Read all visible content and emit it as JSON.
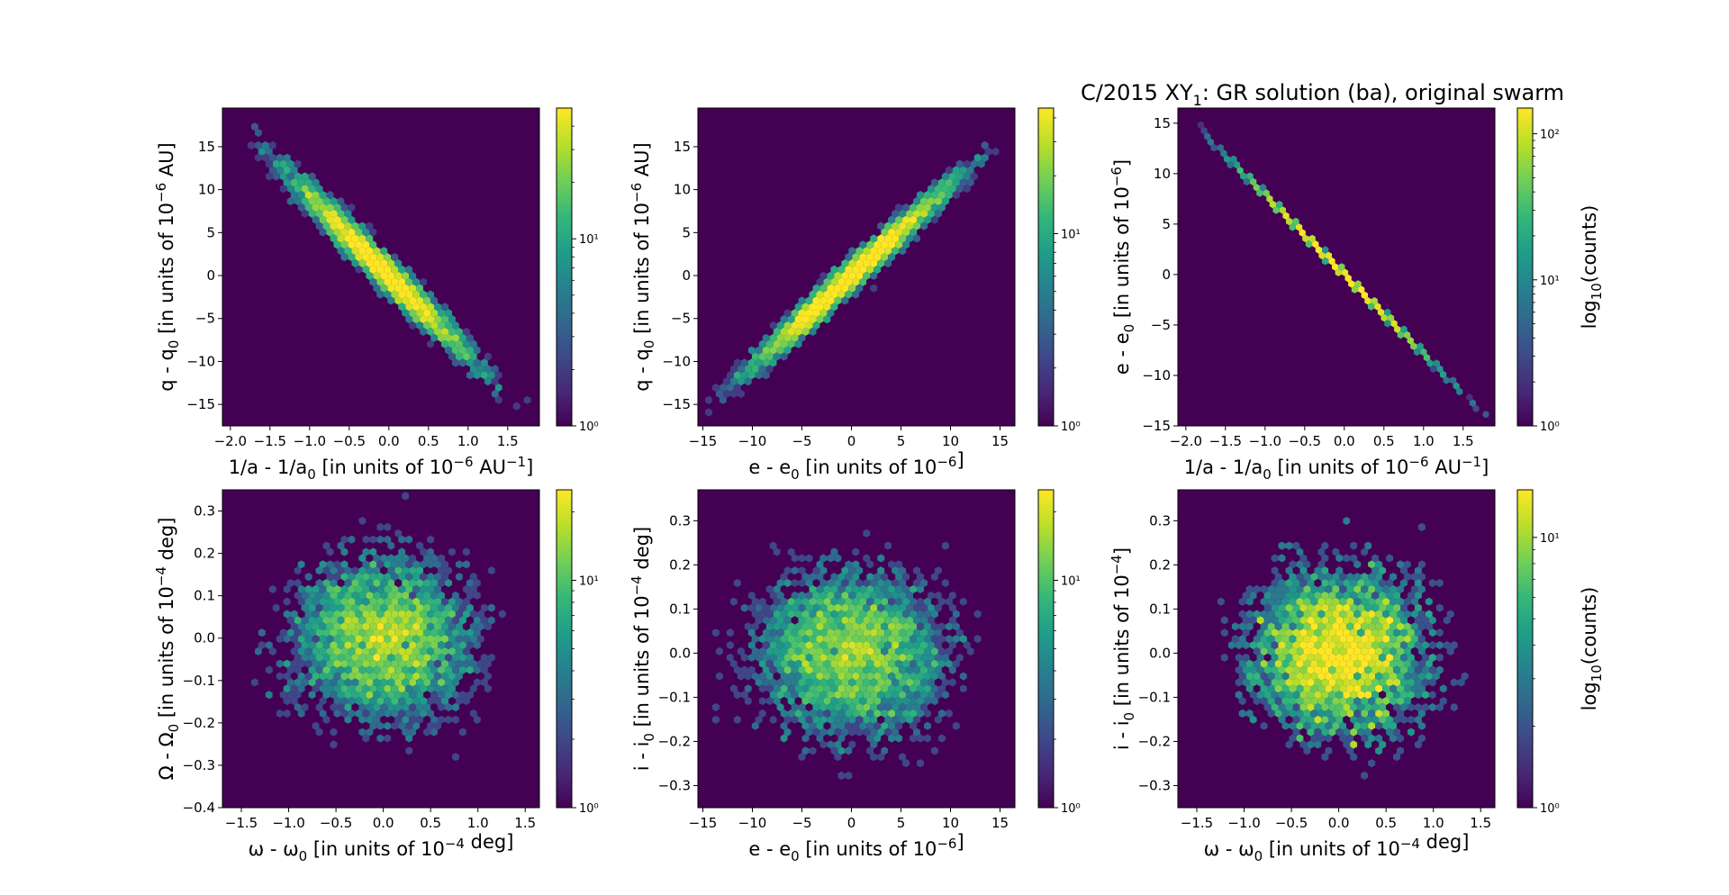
{
  "figure": {
    "title_main": "C/2015 XY",
    "title_sub": "1",
    "title_rest": ": GR solution (ba), original swarm"
  },
  "colors": {
    "background": "#440154",
    "colormap": [
      "#440154",
      "#482878",
      "#3e4989",
      "#31688e",
      "#26828e",
      "#1f9e89",
      "#35b779",
      "#6ece58",
      "#b5de2b",
      "#fde725"
    ]
  },
  "chart_data": [
    {
      "type": "heatmap",
      "panel": "top-left",
      "subtype": "hexbin",
      "xlabel": "1/a - 1/a0 [in units of 10^-6 AU^-1]",
      "ylabel": "q - q0 [in units of 10^-6 AU]",
      "xlim": [
        -2.1,
        1.9
      ],
      "ylim": [
        -17.5,
        19.5
      ],
      "xticks": [
        -2.0,
        -1.5,
        -1.0,
        -0.5,
        0.0,
        0.5,
        1.0,
        1.5
      ],
      "xtick_labels": [
        "−2.0",
        "−1.5",
        "−1.0",
        "−0.5",
        "0.0",
        "0.5",
        "1.0",
        "1.5"
      ],
      "yticks": [
        -15,
        -10,
        -5,
        0,
        5,
        10,
        15
      ],
      "ytick_labels": [
        "−15",
        "−10",
        "−5",
        "0",
        "5",
        "10",
        "15"
      ],
      "distribution": {
        "kind": "linear",
        "slope": -9.2,
        "intercept": 0,
        "x_center": -0.1,
        "x_sigma": 0.6,
        "y_noise_sigma": 1.1,
        "x_range": [
          -2.0,
          1.8
        ],
        "n": 5000
      },
      "colorbar": {
        "scale": "log",
        "range": [
          1,
          50
        ],
        "tick_values": [
          1,
          10
        ],
        "tick_labels": [
          "10⁰",
          "10¹"
        ],
        "label": ""
      }
    },
    {
      "type": "heatmap",
      "panel": "top-middle",
      "subtype": "hexbin",
      "xlabel": "e - e0 [in units of 10^-6]",
      "ylabel": "q - q0 [in units of 10^-6 AU]",
      "xlim": [
        -15.5,
        16.5
      ],
      "ylim": [
        -17.5,
        19.5
      ],
      "xticks": [
        -15,
        -10,
        -5,
        0,
        5,
        10,
        15
      ],
      "xtick_labels": [
        "−15",
        "−10",
        "−5",
        "0",
        "5",
        "10",
        "15"
      ],
      "yticks": [
        -15,
        -10,
        -5,
        0,
        5,
        10,
        15
      ],
      "ytick_labels": [
        "−15",
        "−10",
        "−5",
        "0",
        "5",
        "10",
        "15"
      ],
      "distribution": {
        "kind": "linear",
        "slope": 1.05,
        "intercept": 0,
        "x_center": 0.0,
        "x_sigma": 5.2,
        "y_noise_sigma": 1.0,
        "x_range": [
          -15,
          16
        ],
        "n": 5000
      },
      "colorbar": {
        "scale": "log",
        "range": [
          1,
          45
        ],
        "tick_values": [
          1,
          10
        ],
        "tick_labels": [
          "10⁰",
          "10¹"
        ],
        "label": ""
      }
    },
    {
      "type": "heatmap",
      "panel": "top-right",
      "subtype": "hexbin",
      "xlabel": "1/a - 1/a0 [in units of 10^-6 AU^-1]",
      "ylabel": "e - e0 [in units of 10^-6]",
      "xlim": [
        -2.1,
        1.9
      ],
      "ylim": [
        -15,
        16.5
      ],
      "xticks": [
        -2.0,
        -1.5,
        -1.0,
        -0.5,
        0.0,
        0.5,
        1.0,
        1.5
      ],
      "xtick_labels": [
        "−2.0",
        "−1.5",
        "−1.0",
        "−0.5",
        "0.0",
        "0.5",
        "1.0",
        "1.5"
      ],
      "yticks": [
        -15,
        -10,
        -5,
        0,
        5,
        10,
        15
      ],
      "ytick_labels": [
        "−15",
        "−10",
        "−5",
        "0",
        "5",
        "10",
        "15"
      ],
      "distribution": {
        "kind": "linear",
        "slope": -7.9,
        "intercept": 0,
        "x_center": -0.1,
        "x_sigma": 0.6,
        "y_noise_sigma": 0.0,
        "x_range": [
          -2.0,
          1.8
        ],
        "n": 5000
      },
      "colorbar": {
        "scale": "log",
        "range": [
          1,
          150
        ],
        "tick_values": [
          1,
          10,
          100
        ],
        "tick_labels": [
          "10⁰",
          "10¹",
          "10²"
        ],
        "label": "log10(counts)"
      }
    },
    {
      "type": "heatmap",
      "panel": "bottom-left",
      "subtype": "hexbin",
      "xlabel": "ω - ω0 [in units of 10^-4 deg]",
      "ylabel": "Ω - Ω0 [in units of 10^-4 deg]",
      "xlim": [
        -1.7,
        1.65
      ],
      "ylim": [
        -0.4,
        0.35
      ],
      "xticks": [
        -1.5,
        -1.0,
        -0.5,
        0.0,
        0.5,
        1.0,
        1.5
      ],
      "xtick_labels": [
        "−1.5",
        "−1.0",
        "−0.5",
        "0.0",
        "0.5",
        "1.0",
        "1.5"
      ],
      "yticks": [
        -0.4,
        -0.3,
        -0.2,
        -0.1,
        0.0,
        0.1,
        0.2,
        0.3
      ],
      "ytick_labels": [
        "−0.4",
        "−0.3",
        "−0.2",
        "−0.1",
        "0.0",
        "0.1",
        "0.2",
        "0.3"
      ],
      "distribution": {
        "kind": "gaussian",
        "x_center": 0.0,
        "x_sigma": 0.5,
        "y_center": 0.0,
        "y_sigma": 0.1,
        "n": 5000
      },
      "colorbar": {
        "scale": "log",
        "range": [
          1,
          25
        ],
        "tick_values": [
          1,
          10
        ],
        "tick_labels": [
          "10⁰",
          "10¹"
        ],
        "label": ""
      }
    },
    {
      "type": "heatmap",
      "panel": "bottom-middle",
      "subtype": "hexbin",
      "xlabel": "e - e0 [in units of 10^-6]",
      "ylabel": "i - i0 [in units of 10^-4 deg]",
      "xlim": [
        -15.5,
        16.5
      ],
      "ylim": [
        -0.35,
        0.37
      ],
      "xticks": [
        -15,
        -10,
        -5,
        0,
        5,
        10,
        15
      ],
      "xtick_labels": [
        "−15",
        "−10",
        "−5",
        "0",
        "5",
        "10",
        "15"
      ],
      "yticks": [
        -0.3,
        -0.2,
        -0.1,
        0.0,
        0.1,
        0.2,
        0.3
      ],
      "ytick_labels": [
        "−0.3",
        "−0.2",
        "−0.1",
        "0.0",
        "0.1",
        "0.2",
        "0.3"
      ],
      "distribution": {
        "kind": "gaussian",
        "x_center": 0.0,
        "x_sigma": 5.0,
        "y_center": 0.0,
        "y_sigma": 0.1,
        "n": 5000
      },
      "colorbar": {
        "scale": "log",
        "range": [
          1,
          25
        ],
        "tick_values": [
          1,
          10
        ],
        "tick_labels": [
          "10⁰",
          "10¹"
        ],
        "label": ""
      }
    },
    {
      "type": "heatmap",
      "panel": "bottom-right",
      "subtype": "hexbin",
      "xlabel": "ω - ω0 [in units of 10^-4 deg]",
      "ylabel": "i - i0 [in units of 10^-4]",
      "xlim": [
        -1.7,
        1.65
      ],
      "ylim": [
        -0.35,
        0.37
      ],
      "xticks": [
        -1.5,
        -1.0,
        -0.5,
        0.0,
        0.5,
        1.0,
        1.5
      ],
      "xtick_labels": [
        "−1.5",
        "−1.0",
        "−0.5",
        "0.0",
        "0.5",
        "1.0",
        "1.5"
      ],
      "yticks": [
        -0.3,
        -0.2,
        -0.1,
        0.0,
        0.1,
        0.2,
        0.3
      ],
      "ytick_labels": [
        "−0.3",
        "−0.2",
        "−0.1",
        "0.0",
        "0.1",
        "0.2",
        "0.3"
      ],
      "distribution": {
        "kind": "gaussian",
        "x_center": 0.0,
        "x_sigma": 0.5,
        "y_center": 0.0,
        "y_sigma": 0.1,
        "n": 5000
      },
      "colorbar": {
        "scale": "log",
        "range": [
          1,
          15
        ],
        "tick_values": [
          1,
          10
        ],
        "tick_labels": [
          "10⁰",
          "10¹"
        ],
        "label": "log10(counts)"
      }
    }
  ],
  "labels": {
    "p0": {
      "x_main": "1/a - 1/a",
      "x_sub": "0",
      "x_mid": " [in units of 10",
      "x_sup": "−6",
      "x_mid2": " AU",
      "x_sup2": "−1",
      "x_end": "]",
      "y_main": "q - q",
      "y_sub": "0",
      "y_mid": " [in units of 10",
      "y_sup": "−6",
      "y_end": " AU]"
    },
    "p1": {
      "x_main": "e - e",
      "x_sub": "0",
      "x_mid": " [in units of 10",
      "x_sup": "−6",
      "x_mid2": "",
      "x_sup2": "",
      "x_end": "]",
      "y_main": "q - q",
      "y_sub": "0",
      "y_mid": " [in units of 10",
      "y_sup": "−6",
      "y_end": " AU]"
    },
    "p2": {
      "x_main": "1/a - 1/a",
      "x_sub": "0",
      "x_mid": " [in units of 10",
      "x_sup": "−6",
      "x_mid2": " AU",
      "x_sup2": "−1",
      "x_end": "]",
      "y_main": "e - e",
      "y_sub": "0",
      "y_mid": " [in units of 10",
      "y_sup": "−6",
      "y_end": "]"
    },
    "p3": {
      "x_main": "ω - ω",
      "x_sub": "0",
      "x_mid": " [in units of 10",
      "x_sup": "−4",
      "x_mid2": "",
      "x_sup2": "",
      "x_end": " deg]",
      "y_main": "Ω - Ω",
      "y_sub": "0",
      "y_mid": " [in units of 10",
      "y_sup": "−4",
      "y_end": " deg]"
    },
    "p4": {
      "x_main": "e - e",
      "x_sub": "0",
      "x_mid": " [in units of 10",
      "x_sup": "−6",
      "x_mid2": "",
      "x_sup2": "",
      "x_end": "]",
      "y_main": "i - i",
      "y_sub": "0",
      "y_mid": " [in units of 10",
      "y_sup": "−4",
      "y_end": " deg]"
    },
    "p5": {
      "x_main": "ω - ω",
      "x_sub": "0",
      "x_mid": " [in units of 10",
      "x_sup": "−4",
      "x_mid2": "",
      "x_sup2": "",
      "x_end": " deg]",
      "y_main": "i - i",
      "y_sub": "0",
      "y_mid": " [in units of 10",
      "y_sup": "−4",
      "y_end": "]"
    },
    "cb_main": "log",
    "cb_sub": "10",
    "cb_end": "(counts)"
  }
}
